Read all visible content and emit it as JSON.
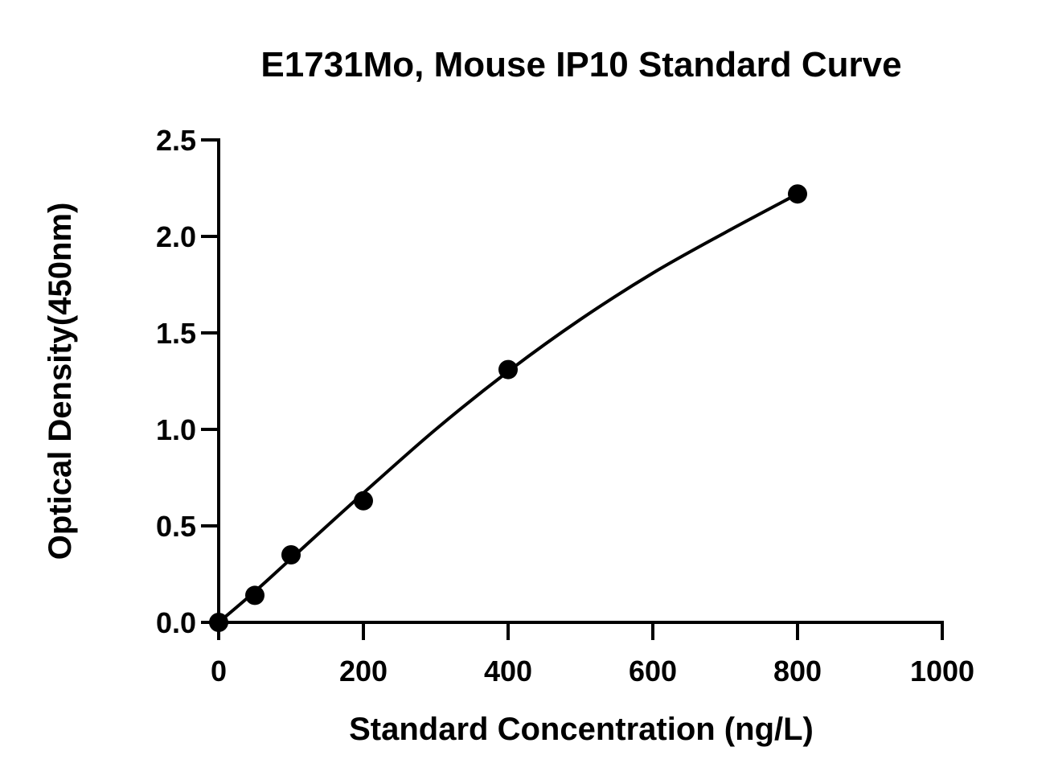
{
  "chart_data": {
    "type": "scatter",
    "title": "E1731Mo, Mouse IP10 Standard Curve",
    "xlabel": "Standard Concentration (ng/L)",
    "ylabel": "Optical Density(450nm)",
    "xlim": [
      0,
      1000
    ],
    "ylim": [
      0,
      2.5
    ],
    "xticks": [
      0,
      200,
      400,
      600,
      800,
      1000
    ],
    "xtick_labels": [
      "0",
      "200",
      "400",
      "600",
      "800",
      "1000"
    ],
    "yticks": [
      0,
      0.5,
      1.0,
      1.5,
      2.0,
      2.5
    ],
    "ytick_labels": [
      "0.0",
      "0.5",
      "1.0",
      "1.5",
      "2.0",
      "2.5"
    ],
    "grid": false,
    "series": [
      {
        "marker": "filled-circle",
        "color": "#000000",
        "x": [
          0,
          50,
          100,
          200,
          400,
          800
        ],
        "y": [
          0.0,
          0.14,
          0.35,
          0.63,
          1.31,
          2.22
        ]
      }
    ],
    "fit_curve": {
      "type": "smooth fit line",
      "color": "#000000",
      "x": [
        0,
        50,
        100,
        200,
        300,
        400,
        500,
        600,
        700,
        800
      ],
      "y": [
        0.0,
        0.16,
        0.33,
        0.67,
        1.0,
        1.3,
        1.57,
        1.81,
        2.02,
        2.22
      ]
    }
  }
}
